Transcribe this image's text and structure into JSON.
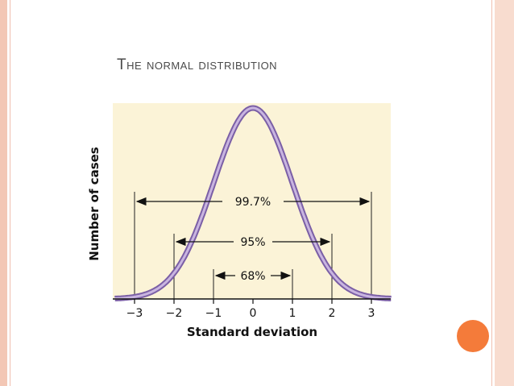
{
  "title": "The normal distribution",
  "diagram": {
    "ylabel": "Number of cases",
    "xlabel": "Standard deviation",
    "ticks": [
      "−3",
      "−2",
      "−1",
      "0",
      "1",
      "2",
      "3"
    ],
    "intervals": [
      {
        "label": "99.7%",
        "sd": 3
      },
      {
        "label": "95%",
        "sd": 2
      },
      {
        "label": "68%",
        "sd": 1
      }
    ],
    "colors": {
      "plot_background": "#fbf3d7",
      "curve": "#9b7fbf",
      "accent": "#f47b3a"
    }
  }
}
